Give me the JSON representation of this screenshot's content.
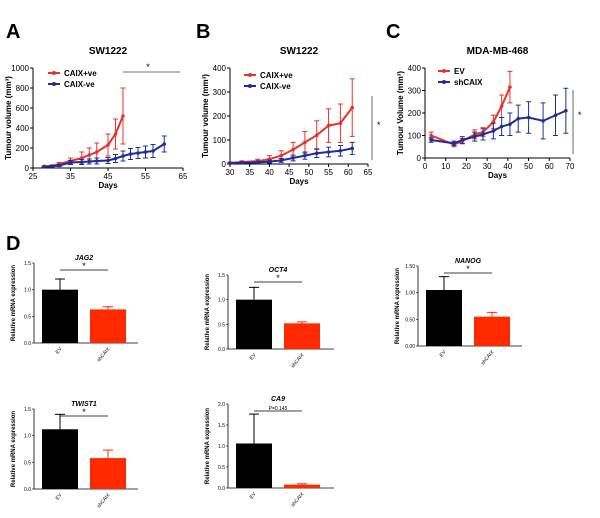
{
  "panel_labels": [
    "A",
    "B",
    "C",
    "D"
  ],
  "chart_data": [
    {
      "id": "A",
      "type": "line",
      "title": "SW1222",
      "xlabel": "Days",
      "ylabel": "Tumour volume (mm³)",
      "xlim": [
        25,
        65
      ],
      "ylim": [
        0,
        1000
      ],
      "xticks": [
        25,
        35,
        45,
        55,
        65
      ],
      "yticks": [
        0,
        200,
        400,
        600,
        800,
        1000
      ],
      "series": [
        {
          "name": "CAIX+ve",
          "color": "#e8332a",
          "x": [
            28,
            30,
            32,
            35,
            38,
            40,
            42,
            45,
            47,
            49
          ],
          "y": [
            15,
            20,
            40,
            70,
            100,
            130,
            160,
            230,
            340,
            520
          ],
          "err": [
            5,
            8,
            15,
            30,
            60,
            70,
            90,
            110,
            150,
            280
          ]
        },
        {
          "name": "CAIX-ve",
          "color": "#1f2d9a",
          "x": [
            28,
            30,
            32,
            35,
            38,
            40,
            42,
            45,
            47,
            49,
            51,
            53,
            55,
            57,
            60
          ],
          "y": [
            15,
            18,
            25,
            55,
            60,
            65,
            70,
            75,
            95,
            120,
            140,
            150,
            160,
            170,
            240
          ],
          "err": [
            5,
            8,
            10,
            20,
            25,
            25,
            30,
            30,
            40,
            50,
            55,
            55,
            60,
            65,
            80
          ]
        }
      ],
      "annotation": "*"
    },
    {
      "id": "B",
      "type": "line",
      "title": "SW1222",
      "xlabel": "Days",
      "ylabel": "Tumour volume (mm³)",
      "xlim": [
        30,
        65
      ],
      "ylim": [
        0,
        400
      ],
      "xticks": [
        30,
        35,
        40,
        45,
        50,
        55,
        60,
        65
      ],
      "yticks": [
        0,
        100,
        200,
        300,
        400
      ],
      "series": [
        {
          "name": "CAIX+ve",
          "color": "#e8332a",
          "x": [
            30,
            33,
            37,
            40,
            43,
            46,
            49,
            52,
            55,
            58,
            61
          ],
          "y": [
            5,
            8,
            12,
            20,
            35,
            60,
            90,
            120,
            160,
            170,
            235
          ],
          "err": [
            3,
            5,
            8,
            15,
            20,
            30,
            45,
            60,
            70,
            80,
            120
          ]
        },
        {
          "name": "CAIX-ve",
          "color": "#1f2d9a",
          "x": [
            30,
            33,
            37,
            40,
            43,
            46,
            49,
            52,
            55,
            58,
            61
          ],
          "y": [
            3,
            5,
            7,
            10,
            15,
            25,
            35,
            45,
            50,
            55,
            65
          ],
          "err": [
            2,
            3,
            4,
            6,
            8,
            12,
            15,
            18,
            20,
            22,
            25
          ]
        }
      ],
      "annotation": "*"
    },
    {
      "id": "C",
      "type": "line",
      "title": "MDA-MB-468",
      "xlabel": "Days",
      "ylabel": "Tumour Volume (mm³)",
      "xlim": [
        0,
        70
      ],
      "ylim": [
        0,
        400
      ],
      "xticks": [
        0,
        10,
        20,
        30,
        40,
        50,
        60,
        70
      ],
      "yticks": [
        0,
        100,
        200,
        300,
        400
      ],
      "series": [
        {
          "name": "EV",
          "color": "#e8332a",
          "x": [
            3,
            14,
            18,
            24,
            28,
            33,
            37,
            41
          ],
          "y": [
            100,
            60,
            75,
            105,
            115,
            160,
            230,
            315
          ],
          "err": [
            15,
            10,
            12,
            20,
            20,
            30,
            50,
            70
          ]
        },
        {
          "name": "shCAIX",
          "color": "#1f2d9a",
          "x": [
            3,
            14,
            18,
            24,
            28,
            33,
            37,
            41,
            45,
            50,
            57,
            63,
            68
          ],
          "y": [
            80,
            65,
            80,
            95,
            105,
            120,
            140,
            150,
            175,
            180,
            165,
            190,
            210
          ],
          "err": [
            10,
            10,
            15,
            20,
            25,
            35,
            40,
            50,
            60,
            70,
            80,
            90,
            100
          ]
        }
      ],
      "annotation": "*"
    },
    {
      "id": "D1",
      "type": "bar",
      "gene": "JAG2",
      "ylabel": "Relative mRNA expression",
      "categories": [
        "EV",
        "shCAIX"
      ],
      "values": [
        1.0,
        0.63
      ],
      "errors": [
        0.2,
        0.05
      ],
      "colors": [
        "#000000",
        "#ff2a00"
      ],
      "ylim": [
        0,
        1.5
      ],
      "yticks": [
        0,
        0.5,
        1.0,
        1.5
      ],
      "ytick_labels": [
        "0.0",
        "0.5",
        "1.0",
        "1.5"
      ],
      "annotation": "*"
    },
    {
      "id": "D2",
      "type": "bar",
      "gene": "OCT4",
      "ylabel": "Relative mRNA expression",
      "categories": [
        "EV",
        "shCAIX"
      ],
      "values": [
        1.0,
        0.52
      ],
      "errors": [
        0.25,
        0.03
      ],
      "colors": [
        "#000000",
        "#ff2a00"
      ],
      "ylim": [
        0,
        1.5
      ],
      "yticks": [
        0,
        0.5,
        1.0,
        1.5
      ],
      "ytick_labels": [
        "0.0",
        "0.5",
        "1.0",
        "1.5"
      ],
      "annotation": "*"
    },
    {
      "id": "D3",
      "type": "bar",
      "gene": "NANOG",
      "ylabel": "Relative mRNA expression",
      "categories": [
        "EV",
        "shCAIX"
      ],
      "values": [
        1.05,
        0.55
      ],
      "errors": [
        0.25,
        0.08
      ],
      "colors": [
        "#000000",
        "#ff2a00"
      ],
      "ylim": [
        0,
        1.5
      ],
      "yticks": [
        0,
        0.5,
        1.0,
        1.5
      ],
      "ytick_labels": [
        "0.00",
        "0.50",
        "1.00",
        "1.50"
      ],
      "annotation": "*"
    },
    {
      "id": "D4",
      "type": "bar",
      "gene": "TWIST1",
      "ylabel": "Relative mRNA expression",
      "categories": [
        "EV",
        "shCAIX"
      ],
      "values": [
        1.12,
        0.58
      ],
      "errors": [
        0.28,
        0.15
      ],
      "colors": [
        "#000000",
        "#ff2a00"
      ],
      "ylim": [
        0,
        1.5
      ],
      "yticks": [
        0,
        0.5,
        1.0,
        1.5
      ],
      "ytick_labels": [
        "0.0",
        "0.5",
        "1.0",
        "1.5"
      ],
      "annotation": "*"
    },
    {
      "id": "D5",
      "type": "bar",
      "gene": "CA9",
      "ylabel": "Relative mRNA expression",
      "categories": [
        "EV",
        "shCAIX"
      ],
      "values": [
        1.06,
        0.08
      ],
      "errors": [
        0.7,
        0.02
      ],
      "colors": [
        "#000000",
        "#ff2a00"
      ],
      "ylim": [
        0,
        2.0
      ],
      "yticks": [
        0,
        0.5,
        1.0,
        1.5,
        2.0
      ],
      "ytick_labels": [
        "0.0",
        "0.5",
        "1.0",
        "1.5",
        "2.0"
      ],
      "annotation": "P=0.145"
    }
  ]
}
